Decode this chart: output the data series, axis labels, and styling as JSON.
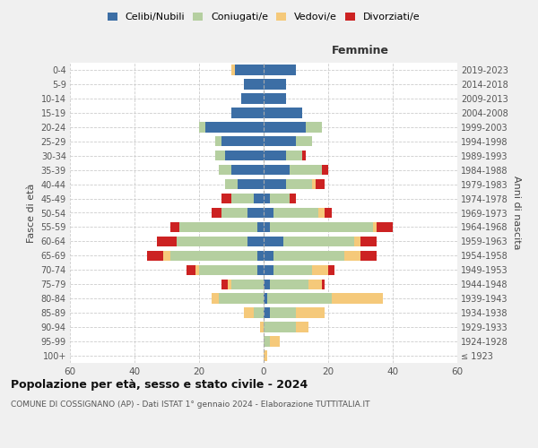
{
  "age_groups": [
    "100+",
    "95-99",
    "90-94",
    "85-89",
    "80-84",
    "75-79",
    "70-74",
    "65-69",
    "60-64",
    "55-59",
    "50-54",
    "45-49",
    "40-44",
    "35-39",
    "30-34",
    "25-29",
    "20-24",
    "15-19",
    "10-14",
    "5-9",
    "0-4"
  ],
  "birth_years": [
    "≤ 1923",
    "1924-1928",
    "1929-1933",
    "1934-1938",
    "1939-1943",
    "1944-1948",
    "1949-1953",
    "1954-1958",
    "1959-1963",
    "1964-1968",
    "1969-1973",
    "1974-1978",
    "1979-1983",
    "1984-1988",
    "1989-1993",
    "1994-1998",
    "1999-2003",
    "2004-2008",
    "2009-2013",
    "2014-2018",
    "2019-2023"
  ],
  "colors": {
    "celibi": "#3c6ea5",
    "coniugati": "#b5cfa0",
    "vedovi": "#f5c97a",
    "divorziati": "#cc2222"
  },
  "males": {
    "celibi": [
      0,
      0,
      0,
      0,
      0,
      0,
      2,
      2,
      5,
      2,
      5,
      3,
      8,
      10,
      12,
      13,
      18,
      10,
      7,
      6,
      9
    ],
    "coniugati": [
      0,
      0,
      0,
      3,
      14,
      10,
      18,
      27,
      22,
      24,
      8,
      7,
      4,
      4,
      3,
      2,
      2,
      0,
      0,
      0,
      0
    ],
    "vedovi": [
      0,
      0,
      1,
      3,
      2,
      1,
      1,
      2,
      0,
      0,
      0,
      0,
      0,
      0,
      0,
      0,
      0,
      0,
      0,
      0,
      1
    ],
    "divorziati": [
      0,
      0,
      0,
      0,
      0,
      2,
      3,
      5,
      6,
      3,
      3,
      3,
      0,
      0,
      0,
      0,
      0,
      0,
      0,
      0,
      0
    ]
  },
  "females": {
    "celibi": [
      0,
      0,
      0,
      2,
      1,
      2,
      3,
      3,
      6,
      2,
      3,
      2,
      7,
      8,
      7,
      10,
      13,
      12,
      7,
      7,
      10
    ],
    "coniugati": [
      0,
      2,
      10,
      8,
      20,
      12,
      12,
      22,
      22,
      32,
      14,
      6,
      8,
      10,
      5,
      5,
      5,
      0,
      0,
      0,
      0
    ],
    "vedovi": [
      1,
      3,
      4,
      9,
      16,
      4,
      5,
      5,
      2,
      1,
      2,
      0,
      1,
      0,
      0,
      0,
      0,
      0,
      0,
      0,
      0
    ],
    "divorziati": [
      0,
      0,
      0,
      0,
      0,
      1,
      2,
      5,
      5,
      5,
      2,
      2,
      3,
      2,
      1,
      0,
      0,
      0,
      0,
      0,
      0
    ]
  },
  "title": "Popolazione per età, sesso e stato civile - 2024",
  "subtitle": "COMUNE DI COSSIGNANO (AP) - Dati ISTAT 1° gennaio 2024 - Elaborazione TUTTITALIA.IT",
  "xlabel_right": "Femmine",
  "ylabel_left": "Fasce di età",
  "ylabel_right": "Anni di nascita",
  "xlim": 60,
  "legend_labels": [
    "Celibi/Nubili",
    "Coniugati/e",
    "Vedovi/e",
    "Divorziati/e"
  ],
  "bg_color": "#f0f0f0",
  "plot_bg": "#ffffff"
}
